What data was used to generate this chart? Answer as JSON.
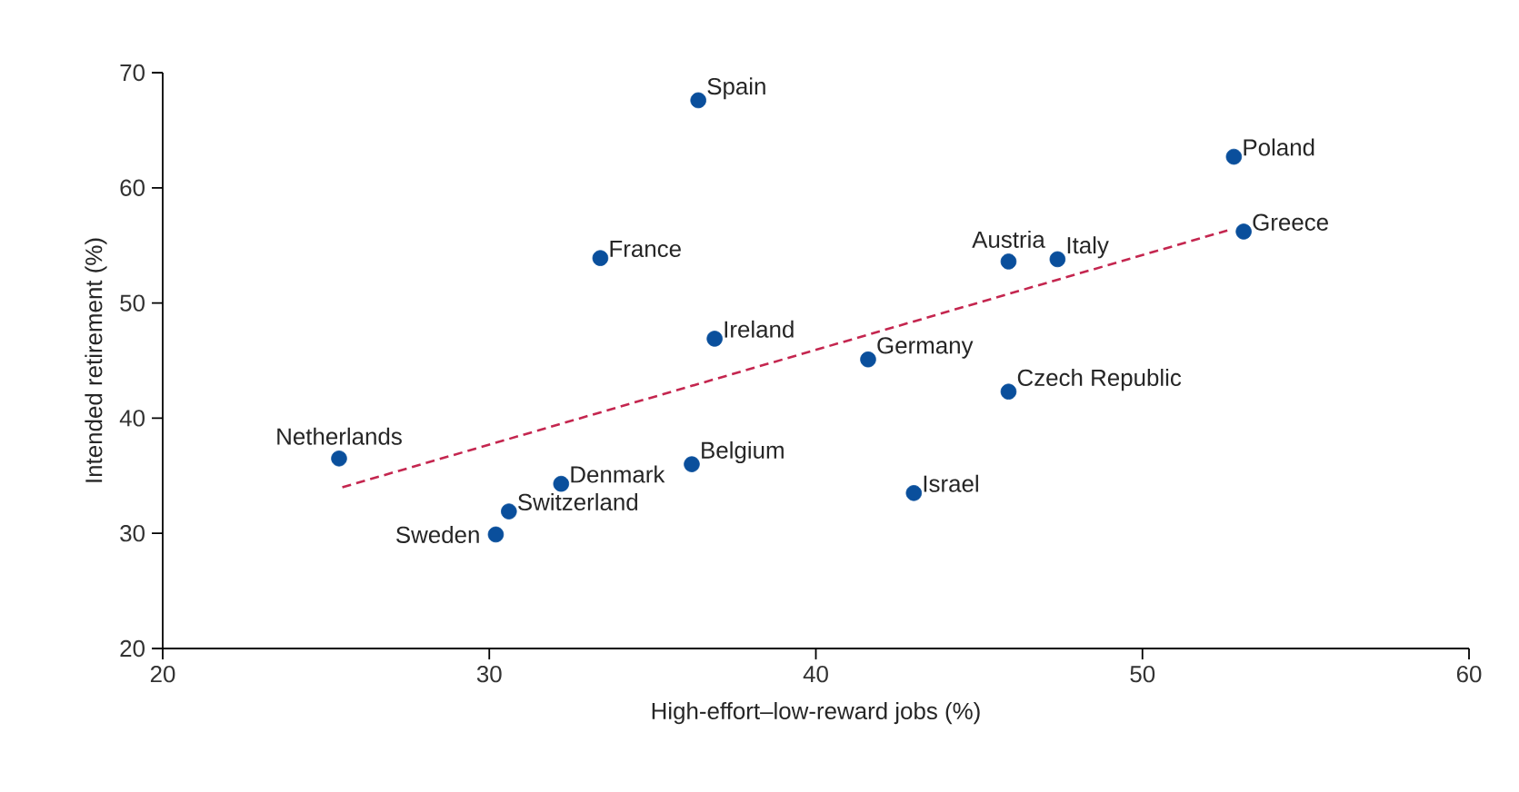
{
  "chart_data": {
    "type": "scatter",
    "xlabel": "High-effort–low-reward jobs (%)",
    "ylabel": "Intended retirement (%)",
    "xlim": [
      20,
      60
    ],
    "ylim": [
      20,
      70
    ],
    "xticks": [
      20,
      30,
      40,
      50,
      60
    ],
    "yticks": [
      20,
      30,
      40,
      50,
      60,
      70
    ],
    "series": [
      {
        "color": "#0a4f9c",
        "marker": "circle",
        "x": [
          36.4,
          52.8,
          53.1,
          33.4,
          45.9,
          47.4,
          36.9,
          41.6,
          45.9,
          25.4,
          36.2,
          32.2,
          43.0,
          30.6,
          30.2
        ],
        "values": [
          67.6,
          62.7,
          56.2,
          53.9,
          53.6,
          53.8,
          46.9,
          45.1,
          42.3,
          36.5,
          36.0,
          34.3,
          33.5,
          31.9,
          29.9
        ]
      },
      {
        "type": "line",
        "color": "#c4264f",
        "line_style": "dashed",
        "marker": "none",
        "x": [
          25.5,
          52.6
        ],
        "values": [
          34.0,
          56.3
        ]
      }
    ],
    "annotations": [
      {
        "text": "Spain",
        "x": 36.4,
        "y": 67.6
      },
      {
        "text": "Poland",
        "x": 52.8,
        "y": 62.7
      },
      {
        "text": "Greece",
        "x": 53.1,
        "y": 56.2
      },
      {
        "text": "France",
        "x": 33.4,
        "y": 53.9
      },
      {
        "text": "Austria",
        "x": 45.9,
        "y": 53.6
      },
      {
        "text": "Italy",
        "x": 47.4,
        "y": 53.8
      },
      {
        "text": "Ireland",
        "x": 36.9,
        "y": 46.9
      },
      {
        "text": "Germany",
        "x": 41.6,
        "y": 45.1
      },
      {
        "text": "Czech Republic",
        "x": 45.9,
        "y": 42.3
      },
      {
        "text": "Netherlands",
        "x": 25.4,
        "y": 36.5
      },
      {
        "text": "Belgium",
        "x": 36.2,
        "y": 36.0
      },
      {
        "text": "Denmark",
        "x": 32.2,
        "y": 34.3
      },
      {
        "text": "Israel",
        "x": 43.0,
        "y": 33.5
      },
      {
        "text": "Switzerland",
        "x": 30.6,
        "y": 31.9
      },
      {
        "text": "Sweden",
        "x": 30.2,
        "y": 29.9
      }
    ]
  }
}
